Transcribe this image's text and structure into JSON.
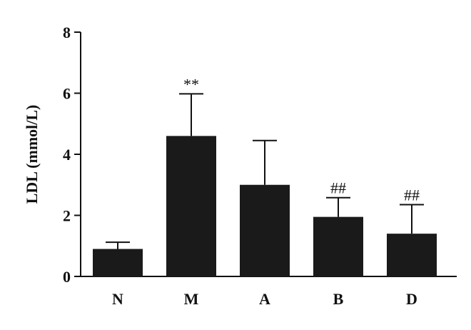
{
  "chart_data": {
    "type": "bar",
    "categories": [
      "N",
      "M",
      "A",
      "B",
      "D"
    ],
    "values": [
      0.9,
      4.6,
      3.0,
      1.95,
      1.4
    ],
    "errors": [
      0.22,
      1.38,
      1.45,
      0.63,
      0.95
    ],
    "annotations": [
      "",
      "**",
      "",
      "##",
      "##"
    ],
    "ylabel": "LDL (mmol/L)",
    "ylim": [
      0,
      8
    ],
    "yticks": [
      0,
      2,
      4,
      6,
      8
    ],
    "bar_color": "#1a1a1a",
    "grid": false,
    "legend": "none"
  }
}
